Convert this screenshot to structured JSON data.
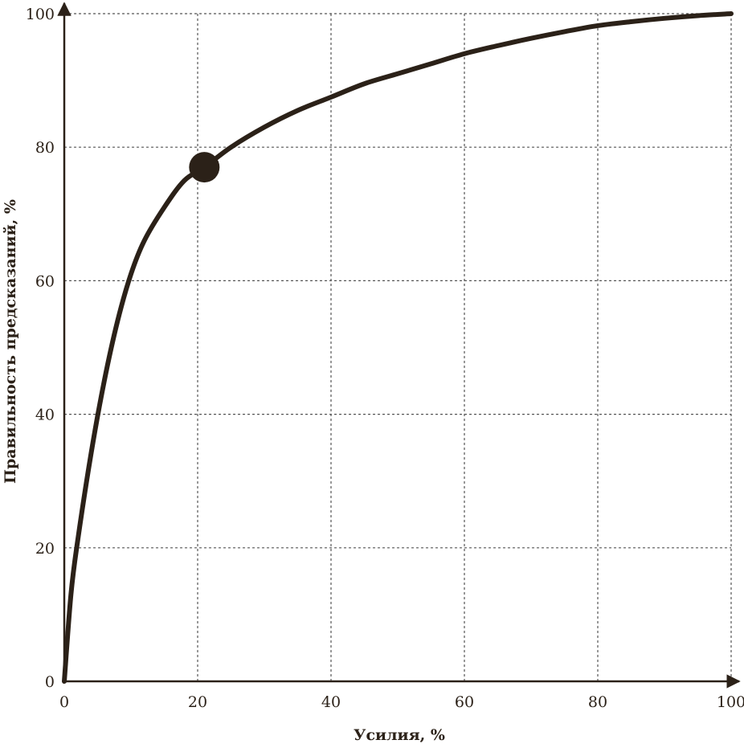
{
  "chart_data": {
    "type": "line",
    "xlabel": "Усилия, %",
    "ylabel": "Правильность предсказаний, %",
    "xlim": [
      0,
      100
    ],
    "ylim": [
      0,
      100
    ],
    "x_ticks": [
      "0",
      "20",
      "40",
      "60",
      "80",
      "100"
    ],
    "y_ticks": [
      "0",
      "20",
      "40",
      "60",
      "80",
      "100"
    ],
    "grid": true,
    "colors": {
      "line": "#2b2118",
      "grid": "#555555"
    },
    "series": [
      {
        "x": [
          0,
          1,
          2,
          4,
          6,
          8,
          10,
          12,
          15,
          18,
          21,
          25,
          30,
          35,
          40,
          45,
          50,
          55,
          60,
          65,
          70,
          75,
          80,
          85,
          90,
          95,
          100
        ],
        "y": [
          0,
          13,
          21,
          34,
          45,
          54,
          61,
          66,
          71,
          75,
          77,
          80,
          83,
          85.5,
          87.5,
          89.5,
          91,
          92.5,
          94,
          95.2,
          96.3,
          97.3,
          98.2,
          98.8,
          99.3,
          99.7,
          100
        ]
      }
    ],
    "marker": {
      "x": 21,
      "y": 77
    }
  }
}
